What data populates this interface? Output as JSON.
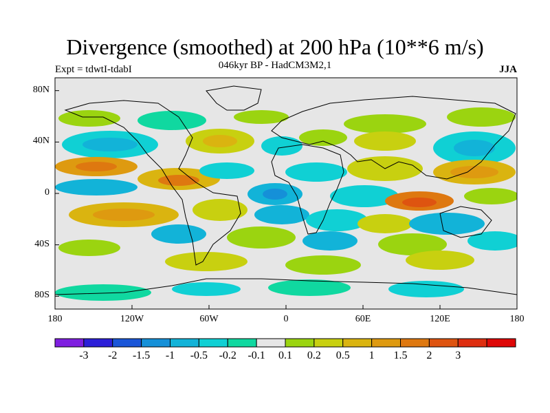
{
  "map": {
    "title": "Divergence (smoothed) at 200 hPa (10**6 m/s)",
    "subtitle": "046kyr BP - HadCM3M2,1",
    "expt": "Expt = tdwtI-tdabI",
    "season": "JJA",
    "lat_labels": [
      "80N",
      "40N",
      "0",
      "40S",
      "80S"
    ],
    "lat_values": [
      80,
      40,
      0,
      -40,
      -80
    ],
    "lon_labels": [
      "180",
      "120W",
      "60W",
      "0",
      "60E",
      "120E",
      "180"
    ],
    "lon_values": [
      -180,
      -120,
      -60,
      0,
      60,
      120,
      180
    ],
    "land_color": "#e6e6e6"
  },
  "colorbar": {
    "labels": [
      "-3",
      "-2",
      "-1.5",
      "-1",
      "-0.5",
      "-0.2",
      "-0.1",
      "0.1",
      "0.2",
      "0.5",
      "1",
      "1.5",
      "2",
      "3"
    ],
    "colors": [
      "#7f1fe0",
      "#2c1fd8",
      "#1a56d8",
      "#1590d8",
      "#12b3d8",
      "#10d0d4",
      "#10d8a0",
      "#e6e6e6",
      "#9bd410",
      "#c8d010",
      "#dab410",
      "#de9a10",
      "#de7810",
      "#de5410",
      "#de2e10",
      "#de0808"
    ]
  }
}
